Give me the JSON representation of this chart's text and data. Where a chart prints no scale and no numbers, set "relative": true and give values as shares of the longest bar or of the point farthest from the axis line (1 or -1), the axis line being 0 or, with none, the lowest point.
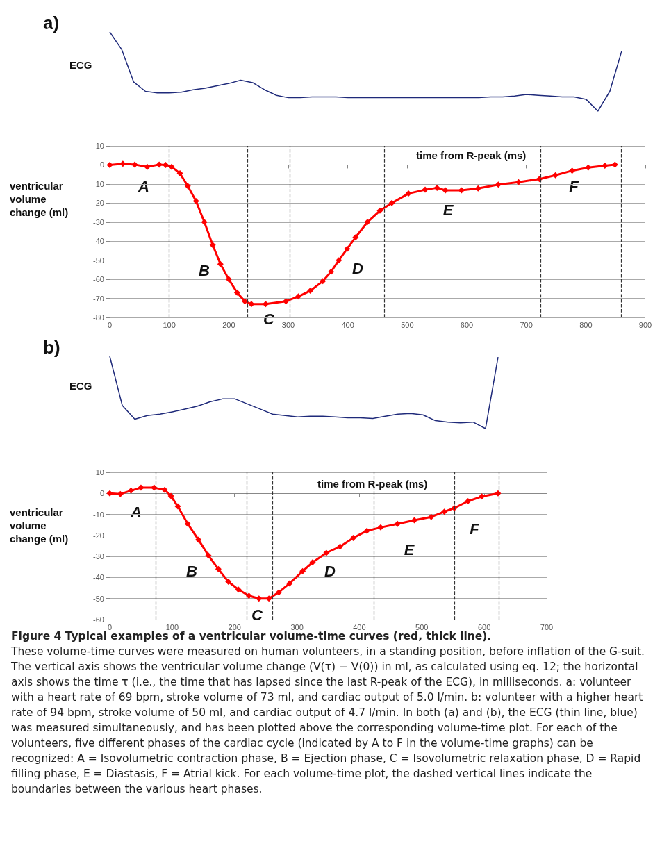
{
  "chart_data": [
    {
      "type": "line",
      "title": "a)",
      "ylabel": "ECG",
      "relative": true,
      "color": "#1f2a7a",
      "categories": [
        null,
        null,
        null,
        null,
        null,
        null,
        null,
        null,
        null,
        null,
        null,
        null,
        null,
        null,
        null,
        null,
        null,
        null,
        null,
        null,
        null,
        null,
        null,
        null,
        null,
        null,
        null,
        null,
        null,
        null,
        null,
        null,
        null,
        null,
        null,
        null,
        null,
        null,
        null,
        null,
        null,
        null,
        null,
        null
      ],
      "values": [
        1,
        0.78,
        0.37,
        0.25,
        0.23,
        0.23,
        0.24,
        0.27,
        0.29,
        0.32,
        0.35,
        0.39,
        0.36,
        0.27,
        0.2,
        0.17,
        0.17,
        0.18,
        0.18,
        0.18,
        0.17,
        0.17,
        0.17,
        0.17,
        0.17,
        0.17,
        0.17,
        0.17,
        0.17,
        0.17,
        0.17,
        0.17,
        0.18,
        0.18,
        0.19,
        0.21,
        0.2,
        0.19,
        0.18,
        0.18,
        0.15,
        0,
        0.25,
        0.76
      ]
    },
    {
      "type": "line",
      "xlabel": "time from R-peak (ms)",
      "ylabel": "ventricular volume change (ml)",
      "color": "#ff0000",
      "marker": "diamond",
      "xlim": [
        0,
        900
      ],
      "xticks": [
        0,
        100,
        200,
        300,
        400,
        500,
        600,
        700,
        800,
        900
      ],
      "ylim": [
        -80,
        10
      ],
      "yticks": [
        -80,
        -70,
        -60,
        -50,
        -40,
        -30,
        -20,
        -10,
        0,
        10
      ],
      "grid": "y",
      "x": [
        0,
        22,
        42,
        63,
        83,
        94,
        104,
        118,
        131,
        145,
        159,
        173,
        186,
        200,
        214,
        227,
        238,
        262,
        296,
        317,
        337,
        358,
        372,
        385,
        399,
        413,
        433,
        454,
        474,
        502,
        530,
        550,
        564,
        591,
        619,
        653,
        687,
        722,
        749,
        777,
        804,
        832,
        849
      ],
      "values": [
        0,
        0.6,
        0.2,
        -1,
        0.2,
        0,
        -1,
        -4.4,
        -11,
        -19,
        -30,
        -42,
        -52,
        -60,
        -67,
        -71.5,
        -73,
        -73,
        -71.5,
        -69,
        -66,
        -61,
        -56,
        -50,
        -44,
        -38,
        -30,
        -24,
        -20,
        -15,
        -13,
        -12,
        -13.3,
        -13.3,
        -12.3,
        -10.3,
        -9,
        -7.4,
        -5.4,
        -3,
        -1.4,
        -0.4,
        0.2
      ],
      "ref_lines": [
        {
          "axis": "x",
          "value": 99,
          "color": "#333333",
          "line_style": "dashed"
        },
        {
          "axis": "x",
          "value": 232,
          "color": "#333333",
          "line_style": "dashed"
        },
        {
          "axis": "x",
          "value": 303,
          "color": "#333333",
          "line_style": "dashed"
        },
        {
          "axis": "x",
          "value": 461,
          "color": "#333333",
          "line_style": "dashed"
        },
        {
          "axis": "x",
          "value": 724,
          "color": "#333333",
          "line_style": "dashed"
        },
        {
          "axis": "x",
          "value": 859,
          "color": "#333333",
          "line_style": "dashed"
        }
      ],
      "annotations": [
        "A",
        "B",
        "C",
        "D",
        "E",
        "F"
      ]
    },
    {
      "type": "line",
      "title": "b)",
      "ylabel": "ECG",
      "relative": true,
      "color": "#1f2a7a",
      "categories": [
        null,
        null,
        null,
        null,
        null,
        null,
        null,
        null,
        null,
        null,
        null,
        null,
        null,
        null,
        null,
        null,
        null,
        null,
        null,
        null,
        null,
        null,
        null,
        null,
        null,
        null,
        null,
        null,
        null,
        null,
        null,
        null
      ],
      "values": [
        1,
        0.32,
        0.13,
        0.18,
        0.2,
        0.23,
        0.27,
        0.31,
        0.37,
        0.41,
        0.41,
        0.34,
        0.27,
        0.2,
        0.18,
        0.16,
        0.17,
        0.17,
        0.16,
        0.15,
        0.15,
        0.14,
        0.17,
        0.2,
        0.21,
        0.19,
        0.11,
        0.09,
        0.08,
        0.09,
        0,
        0.99
      ]
    },
    {
      "type": "line",
      "xlabel": "time from R-peak (ms)",
      "ylabel": "ventricular volume change (ml)",
      "color": "#ff0000",
      "marker": "diamond",
      "xlim": [
        0,
        700
      ],
      "xticks": [
        0,
        100,
        200,
        300,
        400,
        500,
        600,
        700
      ],
      "ylim": [
        -60,
        10
      ],
      "yticks": [
        -60,
        -50,
        -40,
        -30,
        -20,
        -10,
        0,
        10
      ],
      "grid": "y",
      "x": [
        0,
        17,
        34,
        50,
        71,
        88,
        98,
        109,
        125,
        142,
        158,
        174,
        190,
        206,
        223,
        239,
        255,
        271,
        288,
        309,
        325,
        347,
        369,
        390,
        412,
        434,
        461,
        488,
        515,
        536,
        552,
        574,
        596,
        622
      ],
      "values": [
        0,
        -0.3,
        1.3,
        2.7,
        2.7,
        1.7,
        -1.2,
        -6.2,
        -14.5,
        -22,
        -29.5,
        -36,
        -42,
        -45.7,
        -48.7,
        -50,
        -50,
        -47,
        -42.8,
        -37,
        -32.8,
        -28.3,
        -25.3,
        -21.2,
        -17.8,
        -16.2,
        -14.5,
        -12.8,
        -11.2,
        -8.7,
        -7,
        -3.7,
        -1.5,
        0
      ],
      "ref_lines": [
        {
          "axis": "x",
          "value": 74,
          "color": "#333333",
          "line_style": "dashed"
        },
        {
          "axis": "x",
          "value": 220,
          "color": "#333333",
          "line_style": "dashed"
        },
        {
          "axis": "x",
          "value": 261,
          "color": "#333333",
          "line_style": "dashed"
        },
        {
          "axis": "x",
          "value": 423,
          "color": "#333333",
          "line_style": "dashed"
        },
        {
          "axis": "x",
          "value": 552,
          "color": "#333333",
          "line_style": "dashed"
        },
        {
          "axis": "x",
          "value": 623,
          "color": "#333333",
          "line_style": "dashed"
        }
      ],
      "annotations": [
        "A",
        "B",
        "C",
        "D",
        "E",
        "F"
      ]
    },
    {
      "type": "other",
      "title": "Figure 4 Typical examples of a ventricular volume-time curves (red, thick line).",
      "annotations": [
        "These volume-time curves were measured on human volunteers, in a standing position, before inflation of the G-suit. The vertical axis shows the ventricular volume change (V(τ) − V(0)) in ml, as calculated using eq. 12; the horizontal axis shows the time τ (i.e., the time that has lapsed since the last R-peak of the ECG), in milliseconds. a: volunteer with a heart rate of 69 bpm, stroke volume of 73 ml, and cardiac output of 5.0 l/min. b: volunteer with a higher heart rate of 94 bpm, stroke volume of 50 ml, and cardiac output of 4.7 l/min. In both (a) and (b), the ECG (thin line, blue) was measured simultaneously, and has been plotted above the corresponding volume-time plot. For each of the volunteers, five different phases of the cardiac cycle (indicated by A to F in the volume-time graphs) can be recognized: A = Isovolumetric contraction phase, B = Ejection phase, C = Isovolumetric relaxation phase, D = Rapid filling phase, E = Diastasis, F = Atrial kick. For each volume-time plot, the dashed vertical lines indicate the boundaries between the various heart phases."
      ]
    }
  ]
}
